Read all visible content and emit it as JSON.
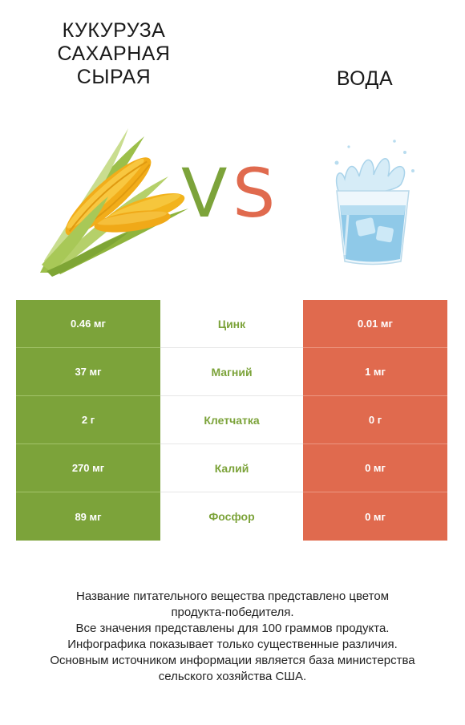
{
  "left_item": {
    "title_lines": [
      "КУКУРУЗА",
      "САХАРНАЯ",
      "СЫРАЯ"
    ],
    "image": "corn-icon"
  },
  "right_item": {
    "title": "ВОДА",
    "image": "water-glass-icon"
  },
  "vs": {
    "v": "V",
    "s": "S"
  },
  "colors": {
    "winner_left": "#7ca33a",
    "winner_right": "#e06a4e",
    "background": "#ffffff"
  },
  "rows": [
    {
      "left": "0.46 мг",
      "nutrient": "Цинк",
      "right": "0.01 мг"
    },
    {
      "left": "37 мг",
      "nutrient": "Магний",
      "right": "1 мг"
    },
    {
      "left": "2 г",
      "nutrient": "Клетчатка",
      "right": "0 г"
    },
    {
      "left": "270 мг",
      "nutrient": "Калий",
      "right": "0 мг"
    },
    {
      "left": "89 мг",
      "nutrient": "Фосфор",
      "right": "0 мг"
    }
  ],
  "footer": {
    "lines": [
      "Название питательного вещества представлено цветом",
      "продукта-победителя.",
      "Все значения представлены для 100 граммов продукта.",
      "Инфографика показывает только существенные различия.",
      "Основным источником информации является база министерства",
      "сельского хозяйства США."
    ]
  }
}
